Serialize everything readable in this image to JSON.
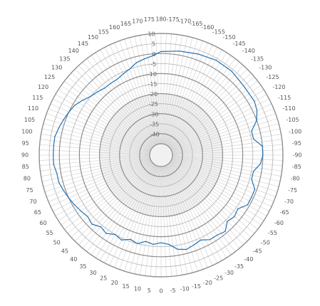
{
  "chart_data": {
    "type": "line",
    "subtype": "polar",
    "angle_unit": "degrees",
    "radial_axis": {
      "min": -45,
      "max": 10,
      "tick_values": [
        10,
        5,
        0,
        -5,
        -10,
        -15,
        -20,
        -25,
        -30,
        -35,
        -40
      ],
      "tick_labels": [
        "10",
        "5",
        "0",
        "-5",
        "-10",
        "-15",
        "-20",
        "-25",
        "-30",
        "-35",
        "-40"
      ],
      "major_rings": [
        10,
        0,
        -10,
        -20,
        -30,
        -40
      ],
      "minor_rings": [
        5,
        -5,
        -15,
        -25,
        -35
      ]
    },
    "angular_axis": {
      "zero_position": "bottom",
      "direction": "counterclockwise",
      "tick_values": [
        -175,
        -170,
        -165,
        -160,
        -155,
        -150,
        -145,
        -140,
        -135,
        -130,
        -125,
        -120,
        -115,
        -110,
        -105,
        -100,
        -95,
        -90,
        -85,
        -80,
        -75,
        -70,
        -65,
        -60,
        -55,
        -50,
        -45,
        -40,
        -35,
        -30,
        -25,
        -20,
        -15,
        -10,
        -5,
        0,
        5,
        10,
        15,
        20,
        25,
        30,
        35,
        40,
        45,
        50,
        55,
        60,
        65,
        70,
        75,
        80,
        85,
        90,
        95,
        100,
        105,
        110,
        115,
        120,
        125,
        130,
        135,
        140,
        145,
        150,
        155,
        160,
        165,
        170,
        175,
        180
      ],
      "tick_labels": [
        "-175",
        "-170",
        "-165",
        "-160",
        "-155",
        "-150",
        "-145",
        "-140",
        "-135",
        "-130",
        "-125",
        "-120",
        "-115",
        "-110",
        "-105",
        "-100",
        "-95",
        "-90",
        "-85",
        "-80",
        "-75",
        "-70",
        "-65",
        "-60",
        "-55",
        "-50",
        "-45",
        "-40",
        "-35",
        "-30",
        "-25",
        "-20",
        "-15",
        "-10",
        "-5",
        "0",
        "5",
        "10",
        "15",
        "20",
        "25",
        "30",
        "35",
        "40",
        "45",
        "50",
        "55",
        "60",
        "65",
        "70",
        "75",
        "80",
        "85",
        "90",
        "95",
        "100",
        "105",
        "110",
        "115",
        "120",
        "125",
        "130",
        "135",
        "140",
        "145",
        "150",
        "155",
        "160",
        "165",
        "170",
        "175",
        "180"
      ]
    },
    "grid": true,
    "series": [
      {
        "color": "#1f6fb2",
        "points": [
          {
            "theta": -180,
            "r": 1
          },
          {
            "theta": -170,
            "r": 2
          },
          {
            "theta": -160,
            "r": 3
          },
          {
            "theta": -150,
            "r": 4
          },
          {
            "theta": -140,
            "r": 4
          },
          {
            "theta": -130,
            "r": 3
          },
          {
            "theta": -120,
            "r": 3
          },
          {
            "theta": -115,
            "r": 2
          },
          {
            "theta": -110,
            "r": 0
          },
          {
            "theta": -105,
            "r": -4
          },
          {
            "theta": -100,
            "r": -4
          },
          {
            "theta": -95,
            "r": 0
          },
          {
            "theta": -90,
            "r": 0
          },
          {
            "theta": -85,
            "r": -1
          },
          {
            "theta": -80,
            "r": -4
          },
          {
            "theta": -75,
            "r": -4
          },
          {
            "theta": -70,
            "r": -1
          },
          {
            "theta": -65,
            "r": -1
          },
          {
            "theta": -60,
            "r": -1
          },
          {
            "theta": -55,
            "r": -4
          },
          {
            "theta": -50,
            "r": -3
          },
          {
            "theta": -45,
            "r": -4
          },
          {
            "theta": -40,
            "r": -1
          },
          {
            "theta": -35,
            "r": -2
          },
          {
            "theta": -30,
            "r": -2
          },
          {
            "theta": -25,
            "r": -4
          },
          {
            "theta": -20,
            "r": -3
          },
          {
            "theta": -15,
            "r": -2
          },
          {
            "theta": -10,
            "r": -3
          },
          {
            "theta": -5,
            "r": -6
          },
          {
            "theta": 0,
            "r": -7
          },
          {
            "theta": 5,
            "r": -6
          },
          {
            "theta": 10,
            "r": -7
          },
          {
            "theta": 15,
            "r": -5
          },
          {
            "theta": 20,
            "r": -6
          },
          {
            "theta": 25,
            "r": -4
          },
          {
            "theta": 30,
            "r": -5
          },
          {
            "theta": 35,
            "r": -3
          },
          {
            "theta": 40,
            "r": -4
          },
          {
            "theta": 45,
            "r": -2
          },
          {
            "theta": 50,
            "r": -3
          },
          {
            "theta": 55,
            "r": -2
          },
          {
            "theta": 60,
            "r": -1
          },
          {
            "theta": 65,
            "r": 0
          },
          {
            "theta": 70,
            "r": 1
          },
          {
            "theta": 75,
            "r": 2
          },
          {
            "theta": 80,
            "r": 2
          },
          {
            "theta": 85,
            "r": 3
          },
          {
            "theta": 90,
            "r": 3
          },
          {
            "theta": 95,
            "r": 3
          },
          {
            "theta": 100,
            "r": 3
          },
          {
            "theta": 105,
            "r": 2
          },
          {
            "theta": 110,
            "r": 1
          },
          {
            "theta": 115,
            "r": 0
          },
          {
            "theta": 120,
            "r": -1
          },
          {
            "theta": 125,
            "r": -3
          },
          {
            "theta": 130,
            "r": -5
          },
          {
            "theta": 135,
            "r": -6
          },
          {
            "theta": 140,
            "r": -7
          },
          {
            "theta": 145,
            "r": -7
          },
          {
            "theta": 150,
            "r": -7
          },
          {
            "theta": 155,
            "r": -6
          },
          {
            "theta": 160,
            "r": -5
          },
          {
            "theta": 165,
            "r": -3
          },
          {
            "theta": 170,
            "r": -2
          },
          {
            "theta": 175,
            "r": -1
          },
          {
            "theta": 180,
            "r": 1
          }
        ]
      }
    ],
    "colors": {
      "background": "#ffffff",
      "major_grid": "#8d8d8d",
      "minor_grid": "#b8b8b8",
      "spoke": "#cbcbcb",
      "label": "#555555",
      "center_fill": "#d7d7d7"
    }
  }
}
